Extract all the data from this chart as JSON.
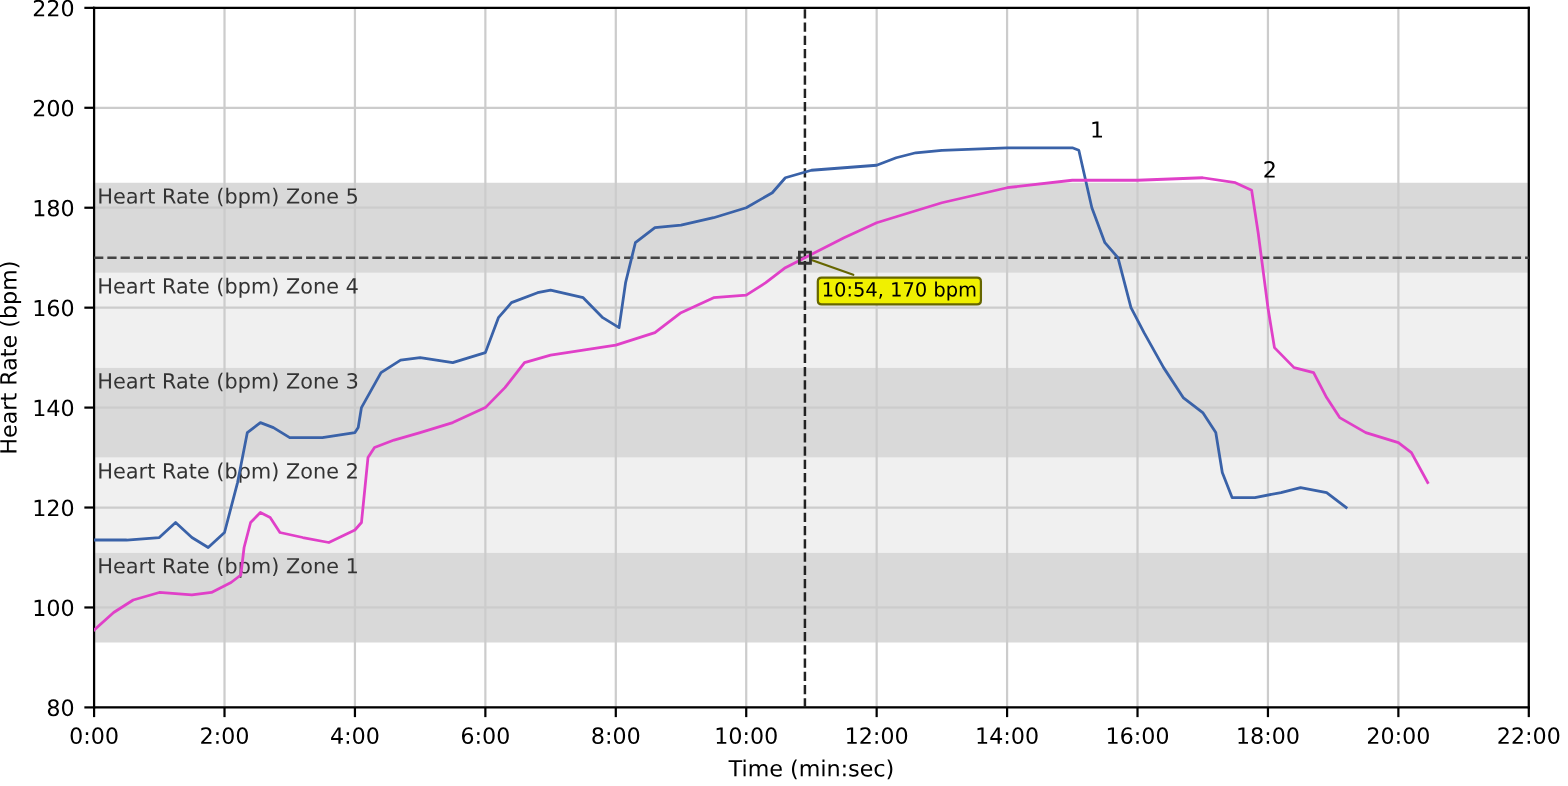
{
  "chart_data": {
    "type": "line",
    "xlabel": "Time (min:sec)",
    "ylabel": "Heart Rate (bpm)",
    "xlim": [
      0,
      22
    ],
    "ylim": [
      80,
      220
    ],
    "xticks": [
      {
        "value": 0,
        "label": "0:00"
      },
      {
        "value": 2,
        "label": "2:00"
      },
      {
        "value": 4,
        "label": "4:00"
      },
      {
        "value": 6,
        "label": "6:00"
      },
      {
        "value": 8,
        "label": "8:00"
      },
      {
        "value": 10,
        "label": "10:00"
      },
      {
        "value": 12,
        "label": "12:00"
      },
      {
        "value": 14,
        "label": "14:00"
      },
      {
        "value": 16,
        "label": "16:00"
      },
      {
        "value": 18,
        "label": "18:00"
      },
      {
        "value": 20,
        "label": "20:00"
      },
      {
        "value": 22,
        "label": "22:00"
      }
    ],
    "yticks": [
      80,
      100,
      120,
      140,
      160,
      180,
      200,
      220
    ],
    "grid": true,
    "line_style": "solid",
    "marker": "none",
    "bands": [
      {
        "axis": "y",
        "from": 93,
        "to": 111,
        "label": "Heart Rate (bpm) Zone 1",
        "color": "#d9d9d9"
      },
      {
        "axis": "y",
        "from": 111,
        "to": 130,
        "label": "Heart Rate (bpm) Zone 2",
        "color": "#f0f0f0"
      },
      {
        "axis": "y",
        "from": 130,
        "to": 148,
        "label": "Heart Rate (bpm) Zone 3",
        "color": "#d9d9d9"
      },
      {
        "axis": "y",
        "from": 148,
        "to": 167,
        "label": "Heart Rate (bpm) Zone 4",
        "color": "#f0f0f0"
      },
      {
        "axis": "y",
        "from": 167,
        "to": 185,
        "label": "Heart Rate (bpm) Zone 5",
        "color": "#d9d9d9"
      }
    ],
    "ref_lines": [
      {
        "axis": "x",
        "value": 10.9,
        "color": "#222222",
        "line_style": "dashed"
      },
      {
        "axis": "y",
        "value": 170,
        "color": "#444444",
        "line_style": "dashed"
      }
    ],
    "annotations": [
      {
        "text": "10:54, 170 bpm",
        "x": 10.9,
        "y": 170
      },
      {
        "text": "1",
        "x": 15.1,
        "y": 192
      },
      {
        "text": "2",
        "x": 17.75,
        "y": 184
      }
    ],
    "series": [
      {
        "color": "#3a62a8",
        "x": [
          0,
          0.5,
          1.0,
          1.25,
          1.5,
          1.75,
          2.0,
          2.2,
          2.35,
          2.55,
          2.75,
          3.0,
          3.5,
          4.0,
          4.05,
          4.1,
          4.4,
          4.7,
          5.0,
          5.5,
          6.0,
          6.2,
          6.4,
          6.8,
          7.0,
          7.5,
          7.8,
          8.05,
          8.15,
          8.3,
          8.6,
          9.0,
          9.5,
          10.0,
          10.4,
          10.6,
          11.0,
          11.5,
          12.0,
          12.3,
          12.6,
          13.0,
          14.0,
          15.0,
          15.1,
          15.3,
          15.5,
          15.7,
          15.9,
          16.1,
          16.4,
          16.7,
          17.0,
          17.2,
          17.3,
          17.45,
          17.8,
          18.2,
          18.5,
          18.9,
          19.2
        ],
        "values": [
          113.5,
          113.5,
          114,
          117,
          114,
          112,
          115,
          125,
          135,
          137,
          136,
          134,
          134,
          135,
          136,
          140,
          147,
          149.5,
          150,
          149,
          151,
          158,
          161,
          163,
          163.5,
          162,
          158,
          156,
          165,
          173,
          176,
          176.5,
          178,
          180,
          183,
          186,
          187.5,
          188,
          188.5,
          190,
          191,
          191.5,
          192,
          192,
          191.5,
          180,
          173,
          170,
          160,
          155,
          148,
          142,
          139,
          135,
          127,
          122,
          122,
          123,
          124,
          123,
          120
        ]
      },
      {
        "color": "#e040c8",
        "x": [
          0,
          0.3,
          0.6,
          1.0,
          1.5,
          1.8,
          2.1,
          2.25,
          2.3,
          2.4,
          2.55,
          2.7,
          2.85,
          3.2,
          3.6,
          4.0,
          4.1,
          4.2,
          4.3,
          4.6,
          5.0,
          5.5,
          6.0,
          6.3,
          6.6,
          7.0,
          7.5,
          8.0,
          8.6,
          9.0,
          9.5,
          10.0,
          10.3,
          10.6,
          10.9,
          11.5,
          12.0,
          13.0,
          14.0,
          15.0,
          16.0,
          17.0,
          17.5,
          17.75,
          17.85,
          18.0,
          18.1,
          18.4,
          18.7,
          18.9,
          19.1,
          19.5,
          20.0,
          20.2,
          20.45
        ],
        "values": [
          95.5,
          99,
          101.5,
          103,
          102.5,
          103,
          105,
          106.5,
          112,
          117,
          119,
          118,
          115,
          114,
          113,
          115.5,
          117,
          130,
          132,
          133.5,
          135,
          137,
          140,
          144,
          149,
          150.5,
          151.5,
          152.5,
          155,
          159,
          162,
          162.5,
          165,
          168,
          170,
          174,
          177,
          181,
          184,
          185.5,
          185.5,
          186,
          185,
          183.5,
          175,
          160,
          152,
          148,
          147,
          142,
          138,
          135,
          133,
          131,
          125
        ]
      }
    ]
  }
}
